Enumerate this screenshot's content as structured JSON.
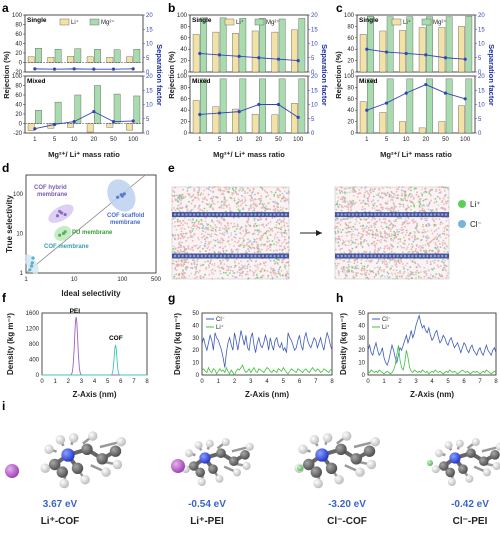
{
  "panels": {
    "a": "a",
    "b": "b",
    "c": "c",
    "d": "d",
    "e": "e",
    "f": "f",
    "g": "g",
    "h": "h",
    "i": "i"
  },
  "colors": {
    "li_bar": "#f3e2a6",
    "mg_bar": "#a8dcae",
    "separation_line": "#3246b4",
    "cl_line": "#3e5cba",
    "li_line": "#3ec23e",
    "pei_peak": "#a060c8",
    "cof_peak": "#3cc8b4"
  },
  "rejection_panels": {
    "single_label": "Single",
    "mixed_label": "Mixed",
    "legend_li": "Li⁺",
    "legend_mg": "Mg²⁺",
    "ylabel": "Rejection (%)",
    "y2label": "Separation factor",
    "xlabel": "Mg²⁺/ Li⁺ mass ratio"
  },
  "chart_data": [
    {
      "id": "a-single",
      "type": "bar",
      "categories": [
        "1",
        "5",
        "10",
        "20",
        "50",
        "100"
      ],
      "series": [
        {
          "name": "Li⁺",
          "values": [
            12,
            11,
            13,
            12,
            11,
            12
          ]
        },
        {
          "name": "Mg²⁺",
          "values": [
            30,
            28,
            29,
            28,
            27,
            28
          ]
        },
        {
          "name": "Separation factor",
          "axis": "right",
          "values": [
            1.1,
            1.0,
            1.1,
            1.0,
            1.0,
            1.1
          ]
        }
      ],
      "ylim": [
        -20,
        100
      ],
      "y2lim": [
        0,
        20
      ],
      "yticks": [
        -20,
        0,
        20,
        40,
        60,
        80,
        100
      ],
      "y2ticks": [
        0,
        5,
        10,
        15,
        20
      ]
    },
    {
      "id": "a-mixed",
      "type": "bar",
      "categories": [
        "1",
        "5",
        "10",
        "20",
        "50",
        "100"
      ],
      "series": [
        {
          "name": "Li⁺",
          "values": [
            -15,
            -10,
            -8,
            -18,
            -8,
            -14
          ]
        },
        {
          "name": "Mg²⁺",
          "values": [
            28,
            45,
            60,
            80,
            62,
            58
          ]
        },
        {
          "name": "Separation factor",
          "axis": "right",
          "values": [
            1.5,
            3.0,
            4.0,
            7.5,
            4.0,
            4.2
          ]
        }
      ],
      "ylim": [
        -20,
        100
      ],
      "y2lim": [
        0,
        20
      ],
      "yticks": [
        -20,
        0,
        20,
        40,
        60,
        80,
        100
      ],
      "y2ticks": [
        0,
        5,
        10,
        15,
        20
      ]
    },
    {
      "id": "b-single",
      "type": "bar",
      "categories": [
        "1",
        "5",
        "10",
        "20",
        "50",
        "100"
      ],
      "series": [
        {
          "name": "Li⁺",
          "values": [
            66,
            70,
            68,
            72,
            70,
            74
          ]
        },
        {
          "name": "Mg²⁺",
          "values": [
            95,
            95,
            94,
            94,
            93,
            94
          ]
        },
        {
          "name": "Separation factor",
          "axis": "right",
          "values": [
            6.5,
            6.0,
            5.5,
            5.0,
            4.5,
            4.0
          ]
        }
      ],
      "ylim": [
        0,
        100
      ],
      "y2lim": [
        0,
        20
      ],
      "yticks": [
        0,
        20,
        40,
        60,
        80,
        100
      ],
      "y2ticks": [
        0,
        5,
        10,
        15,
        20
      ]
    },
    {
      "id": "b-mixed",
      "type": "bar",
      "categories": [
        "1",
        "5",
        "10",
        "20",
        "50",
        "100"
      ],
      "series": [
        {
          "name": "Li⁺",
          "values": [
            57,
            46,
            42,
            33,
            32,
            52
          ]
        },
        {
          "name": "Mg²⁺",
          "values": [
            95,
            95,
            95,
            95,
            95,
            95
          ]
        },
        {
          "name": "Separation factor",
          "axis": "right",
          "values": [
            6.5,
            7.0,
            7.5,
            10.0,
            10.0,
            5.5
          ]
        }
      ],
      "ylim": [
        0,
        100
      ],
      "y2lim": [
        0,
        20
      ],
      "yticks": [
        0,
        20,
        40,
        60,
        80,
        100
      ],
      "y2ticks": [
        0,
        5,
        10,
        15,
        20
      ]
    },
    {
      "id": "c-single",
      "type": "bar",
      "categories": [
        "1",
        "5",
        "10",
        "20",
        "50",
        "100"
      ],
      "series": [
        {
          "name": "Li⁺",
          "values": [
            66,
            72,
            73,
            78,
            78,
            80
          ]
        },
        {
          "name": "Mg²⁺",
          "values": [
            98,
            97,
            97,
            97,
            97,
            98
          ]
        },
        {
          "name": "Separation factor",
          "axis": "right",
          "values": [
            8.0,
            7.0,
            6.5,
            6.0,
            5.0,
            4.5
          ]
        }
      ],
      "ylim": [
        0,
        100
      ],
      "y2lim": [
        0,
        20
      ],
      "yticks": [
        0,
        20,
        40,
        60,
        80,
        100
      ],
      "y2ticks": [
        0,
        5,
        10,
        15,
        20
      ]
    },
    {
      "id": "c-mixed",
      "type": "bar",
      "categories": [
        "1",
        "5",
        "10",
        "20",
        "50",
        "100"
      ],
      "series": [
        {
          "name": "Li⁺",
          "values": [
            55,
            36,
            20,
            9,
            20,
            48
          ]
        },
        {
          "name": "Mg²⁺",
          "values": [
            95,
            95,
            95,
            95,
            95,
            95
          ]
        },
        {
          "name": "Separation factor",
          "axis": "right",
          "values": [
            8.0,
            10.5,
            14.0,
            17.0,
            14.0,
            12.0
          ]
        }
      ],
      "ylim": [
        0,
        100
      ],
      "y2lim": [
        0,
        20
      ],
      "yticks": [
        0,
        20,
        40,
        60,
        80,
        100
      ],
      "y2ticks": [
        0,
        5,
        10,
        15,
        20
      ]
    },
    {
      "id": "d",
      "type": "scatter",
      "xlabel": "Ideal selectivity",
      "ylabel": "True selectivity",
      "xscale": "log",
      "yscale": "log",
      "xticks": [
        "1",
        "10",
        "100",
        "500"
      ],
      "yticks": [
        "1",
        "10",
        "100"
      ],
      "groups": [
        {
          "name": "COF hybrid membrane",
          "points": [
            [
              4.5,
              28
            ],
            [
              5.5,
              33
            ],
            [
              6.5,
              30
            ],
            [
              5,
              36
            ]
          ]
        },
        {
          "name": "COF scaffold membrane",
          "points": [
            [
              80,
              82
            ],
            [
              95,
              95
            ],
            [
              110,
              100
            ],
            [
              100,
              88
            ]
          ]
        },
        {
          "name": "PU membrane",
          "points": [
            [
              5,
              9
            ],
            [
              6,
              10
            ],
            [
              6.5,
              11
            ]
          ]
        },
        {
          "name": "COF membrane",
          "points": [
            [
              1.2,
              1.2
            ],
            [
              1.3,
              1.5
            ],
            [
              1.35,
              1.8
            ],
            [
              1.4,
              2.4
            ]
          ]
        }
      ]
    },
    {
      "id": "f",
      "type": "line",
      "xlabel": "Z-Axis (nm)",
      "ylabel": "Density (kg m⁻³)",
      "xticks": [
        0,
        1,
        2,
        3,
        4,
        5,
        6,
        7,
        8
      ],
      "yticks": [
        0,
        400,
        800,
        1200,
        1600
      ],
      "ylim": [
        0,
        1600
      ],
      "peaks": [
        {
          "name": "PEI",
          "center": 2.6,
          "height": 1500,
          "width": 0.12
        },
        {
          "name": "COF",
          "center": 5.6,
          "height": 780,
          "width": 0.1
        }
      ]
    },
    {
      "id": "g",
      "type": "line",
      "xlabel": "Z-Axis (nm)",
      "ylabel": "Density (kg m⁻³)",
      "xlim": [
        0,
        8
      ],
      "ylim": [
        0,
        50
      ],
      "xticks": [
        0,
        1,
        2,
        3,
        4,
        5,
        6,
        7,
        8
      ],
      "yticks": [
        0,
        10,
        20,
        30,
        40,
        50
      ],
      "series": [
        {
          "name": "Cl⁻",
          "values": [
            25,
            30,
            24,
            20,
            26,
            32,
            28,
            20,
            34,
            30,
            28,
            24,
            20,
            14,
            6,
            18,
            26,
            30,
            24,
            20,
            34,
            28,
            20,
            28,
            36,
            30,
            24,
            32,
            22,
            20,
            30,
            34,
            24,
            18,
            26,
            30,
            24,
            22,
            26,
            32,
            28,
            20,
            30,
            24,
            20,
            28,
            30,
            24,
            22,
            26,
            20,
            22,
            18,
            34,
            30,
            28,
            24,
            20,
            22,
            28,
            32,
            24,
            20,
            30,
            34,
            28,
            24,
            22,
            26,
            30,
            28,
            22,
            26,
            30,
            24,
            20,
            28,
            34,
            30,
            24,
            20
          ]
        },
        {
          "name": "Li⁺",
          "values": [
            4,
            5,
            3,
            2,
            6,
            3,
            2,
            5,
            4,
            1,
            3,
            5,
            3,
            4,
            2,
            6,
            3,
            1,
            4,
            2,
            0,
            3,
            5,
            4,
            6,
            8,
            4,
            2,
            3,
            5,
            2,
            4,
            6,
            3,
            2,
            5,
            4,
            3,
            2,
            4,
            6,
            5,
            3,
            2,
            4,
            3,
            2,
            5,
            4,
            3,
            6,
            4,
            2,
            1,
            3,
            5,
            4,
            3,
            2,
            5,
            4,
            3,
            2,
            4,
            5,
            3,
            2,
            4,
            6,
            4,
            3,
            5,
            4,
            2,
            3,
            5,
            4,
            3,
            2,
            4,
            5
          ]
        }
      ]
    },
    {
      "id": "h",
      "type": "line",
      "xlabel": "Z-Axis (nm)",
      "ylabel": "Density (kg m⁻³)",
      "xlim": [
        0,
        8
      ],
      "ylim": [
        0,
        50
      ],
      "xticks": [
        0,
        1,
        2,
        3,
        4,
        5,
        6,
        7,
        8
      ],
      "yticks": [
        0,
        10,
        20,
        30,
        40,
        50
      ],
      "series": [
        {
          "name": "Cl⁻",
          "values": [
            20,
            24,
            18,
            16,
            22,
            26,
            20,
            16,
            18,
            22,
            14,
            10,
            8,
            12,
            18,
            24,
            20,
            14,
            10,
            16,
            22,
            20,
            24,
            28,
            32,
            26,
            30,
            36,
            30,
            34,
            40,
            44,
            48,
            42,
            38,
            40,
            36,
            34,
            38,
            32,
            28,
            30,
            34,
            36,
            30,
            26,
            28,
            32,
            30,
            26,
            24,
            28,
            30,
            26,
            22,
            24,
            26,
            22,
            18,
            22,
            26,
            24,
            20,
            18,
            22,
            24,
            20,
            18,
            16,
            20,
            22,
            18,
            16,
            20,
            24,
            20,
            18,
            16,
            20,
            22,
            18
          ]
        },
        {
          "name": "Li⁺",
          "values": [
            3,
            2,
            4,
            3,
            2,
            3,
            2,
            4,
            3,
            2,
            1,
            2,
            3,
            2,
            1,
            2,
            4,
            8,
            16,
            24,
            12,
            6,
            4,
            10,
            20,
            14,
            6,
            3,
            2,
            4,
            3,
            2,
            3,
            2,
            4,
            3,
            2,
            3,
            1,
            2,
            3,
            2,
            4,
            3,
            2,
            3,
            2,
            1,
            2,
            3,
            2,
            4,
            3,
            2,
            3,
            2,
            1,
            2,
            3,
            4,
            3,
            2,
            3,
            2,
            1,
            2,
            3,
            2,
            3,
            2,
            1,
            2,
            3,
            2,
            4,
            3,
            2,
            1,
            2,
            3,
            2
          ]
        }
      ]
    }
  ],
  "panel_d_labels": {
    "cof_hybrid": "COF hybrid membrane",
    "cof_scaffold": "COF scaffold membrane",
    "pu": "PU membrane",
    "cof": "COF membrane"
  },
  "panel_e_legend": {
    "li": "Li⁺",
    "cl": "Cl⁻"
  },
  "panel_f_labels": {
    "pei": "PEI",
    "cof": "COF"
  },
  "panel_gh_legend": {
    "cl": "Cl⁻",
    "li": "Li⁺"
  },
  "panel_i": [
    {
      "energy": "3.67 eV",
      "label": "Li⁺-COF"
    },
    {
      "energy": "-0.54 eV",
      "label": "Li⁺-PEI"
    },
    {
      "energy": "-3.20 eV",
      "label": "Cl⁻-COF"
    },
    {
      "energy": "-0.42 eV",
      "label": "Cl⁻-PEI"
    }
  ]
}
